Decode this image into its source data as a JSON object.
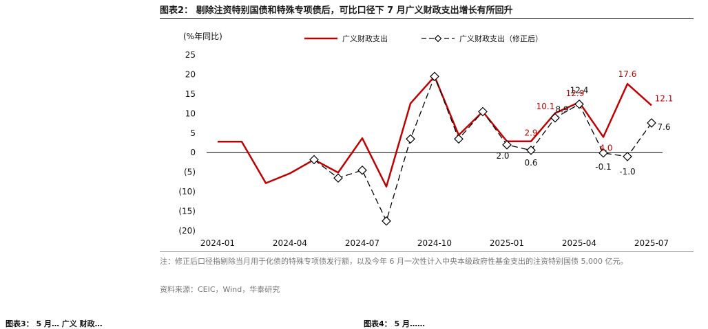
{
  "header": {
    "title": "图表2：  剔除注资特别国债和特殊专项债后，可比口径下 7 月广义财政支出增长有所回升"
  },
  "notes": {
    "note": "注：修正后口径指剔除当月用于化债的特殊专项债发行额，以及今年 6 月一次性计入中央本级政府性基金支出的注资特别国债 5,000 亿元。",
    "source": "资料来源：CEIC，Wind，华泰研究"
  },
  "cutoff": {
    "left": "图表3：  5 月… 广义 财政…",
    "right": "图表4：  5 月……"
  },
  "colors": {
    "series1": "#c00000",
    "series2": "#000000",
    "label_red": "#c00000",
    "label_black": "#111111"
  },
  "chart_data": {
    "type": "line",
    "unit_label": "(%年同比)",
    "ylim": [
      -20,
      25
    ],
    "yticks": [
      "(20)",
      "(15)",
      "(10)",
      "(5)",
      "0",
      "5",
      "10",
      "15",
      "20",
      "25"
    ],
    "ytick_values": [
      -20,
      -15,
      -10,
      -5,
      0,
      5,
      10,
      15,
      20,
      25
    ],
    "x": [
      "2024-01",
      "2024-02",
      "2024-03",
      "2024-04",
      "2024-05",
      "2024-06",
      "2024-07",
      "2024-08",
      "2024-09",
      "2024-10",
      "2024-11",
      "2024-12",
      "2025-01",
      "2025-02",
      "2025-03",
      "2025-04",
      "2025-05",
      "2025-06",
      "2025-07"
    ],
    "xtick_labels": [
      "2024-01",
      "2024-04",
      "2024-07",
      "2024-10",
      "2025-01",
      "2025-04",
      "2025-07"
    ],
    "xtick_indices": [
      0,
      3,
      6,
      9,
      12,
      15,
      18
    ],
    "series": [
      {
        "name": "广义财政支出",
        "style": "solid",
        "values": [
          2.8,
          2.8,
          -7.8,
          -5.3,
          -1.8,
          -5.1,
          3.7,
          -8.7,
          12.6,
          19.5,
          4.5,
          10.5,
          2.9,
          2.9,
          10.1,
          12.9,
          4.0,
          17.6,
          12.1
        ]
      },
      {
        "name": "广义财政支出（修正后）",
        "style": "dashed-diamond",
        "values": [
          null,
          null,
          null,
          null,
          -1.8,
          -6.5,
          -4.5,
          -17.5,
          3.5,
          19.5,
          3.5,
          10.5,
          2.0,
          0.6,
          8.9,
          12.4,
          -0.1,
          -1.0,
          7.6
        ]
      }
    ],
    "data_labels": [
      {
        "text": "2.9",
        "series": 0,
        "index": 13,
        "color": "red"
      },
      {
        "text": "10.1",
        "series": 0,
        "index": 14,
        "color": "red"
      },
      {
        "text": "12.9",
        "series": 0,
        "index": 15,
        "color": "red"
      },
      {
        "text": "4.0",
        "series": 0,
        "index": 16,
        "color": "red"
      },
      {
        "text": "17.6",
        "series": 0,
        "index": 17,
        "color": "red"
      },
      {
        "text": "12.1",
        "series": 0,
        "index": 18,
        "color": "red"
      },
      {
        "text": "2.0",
        "series": 1,
        "index": 12,
        "color": "black"
      },
      {
        "text": "0.6",
        "series": 1,
        "index": 13,
        "color": "black"
      },
      {
        "text": "8.9",
        "series": 1,
        "index": 14,
        "color": "black"
      },
      {
        "text": "12.4",
        "series": 1,
        "index": 15,
        "color": "black"
      },
      {
        "text": "-0.1",
        "series": 1,
        "index": 16,
        "color": "black"
      },
      {
        "text": "-1.0",
        "series": 1,
        "index": 17,
        "color": "black"
      },
      {
        "text": "7.6",
        "series": 1,
        "index": 18,
        "color": "black"
      }
    ]
  }
}
